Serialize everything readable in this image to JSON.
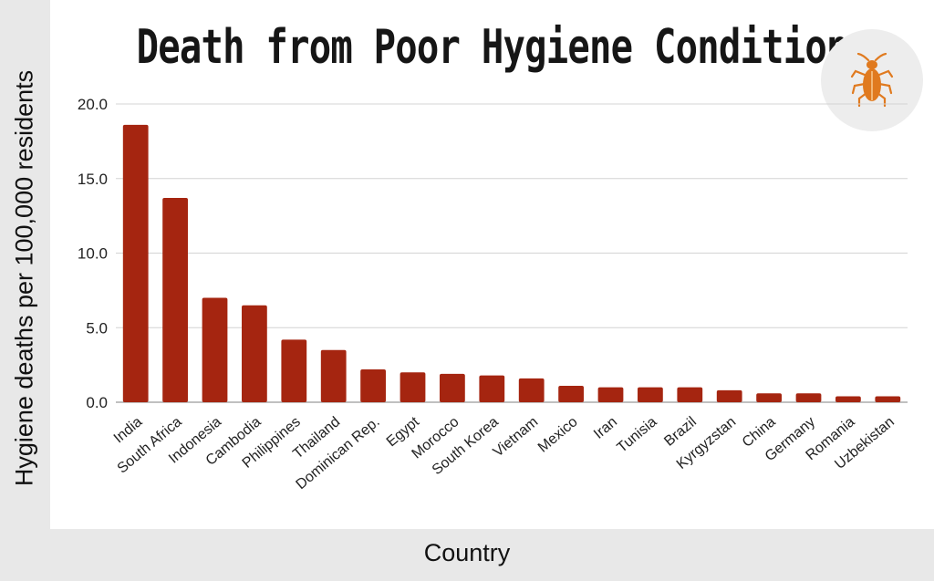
{
  "chart_data": {
    "type": "bar",
    "title": "Death from Poor Hygiene Conditions",
    "xlabel": "Country",
    "ylabel": "Hygiene deaths per 100,000 residents",
    "categories": [
      "India",
      "South Africa",
      "Indonesia",
      "Cambodia",
      "Philippines",
      "Thailand",
      "Dominican Rep.",
      "Egypt",
      "Morocco",
      "South Korea",
      "Vietnam",
      "Mexico",
      "Iran",
      "Tunisia",
      "Brazil",
      "Kyrgyzstan",
      "China",
      "Germany",
      "Romania",
      "Uzbekistan"
    ],
    "values": [
      18.6,
      13.7,
      7.0,
      6.5,
      4.2,
      3.5,
      2.2,
      2.0,
      1.9,
      1.8,
      1.6,
      1.1,
      1.0,
      1.0,
      1.0,
      0.8,
      0.6,
      0.6,
      0.4,
      0.4
    ],
    "yticks": [
      "0.0",
      "5.0",
      "10.0",
      "15.0",
      "20.0"
    ],
    "ylim": [
      0,
      20
    ],
    "grid": true,
    "legend": "none",
    "bar_color": "#a52510"
  },
  "logo": {
    "icon": "cockroach-icon",
    "color": "#e07a1f"
  }
}
